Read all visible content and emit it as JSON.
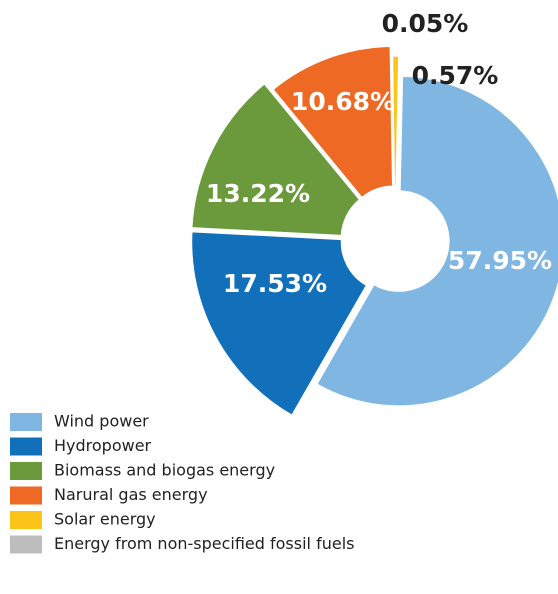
{
  "chart_data": {
    "type": "donut",
    "categories": [
      "Energy from non-specified fossil fuels",
      "Solar energy",
      "Wind power",
      "Hydropower",
      "Biomass and biogas energy",
      "Narural gas energy"
    ],
    "values": [
      0.05,
      0.57,
      57.95,
      17.53,
      13.22,
      10.68
    ],
    "value_labels": [
      "0.05%",
      "0.57%",
      "57.95%",
      "17.53%",
      "13.22%",
      "10.68%"
    ],
    "colors": [
      "#bdbdbd",
      "#fcc419",
      "#7fb6e2",
      "#1170b9",
      "#6a9a3c",
      "#ee6a24"
    ],
    "legend_order": [
      2,
      3,
      4,
      5,
      1,
      0
    ],
    "legend": "bottom-left"
  }
}
